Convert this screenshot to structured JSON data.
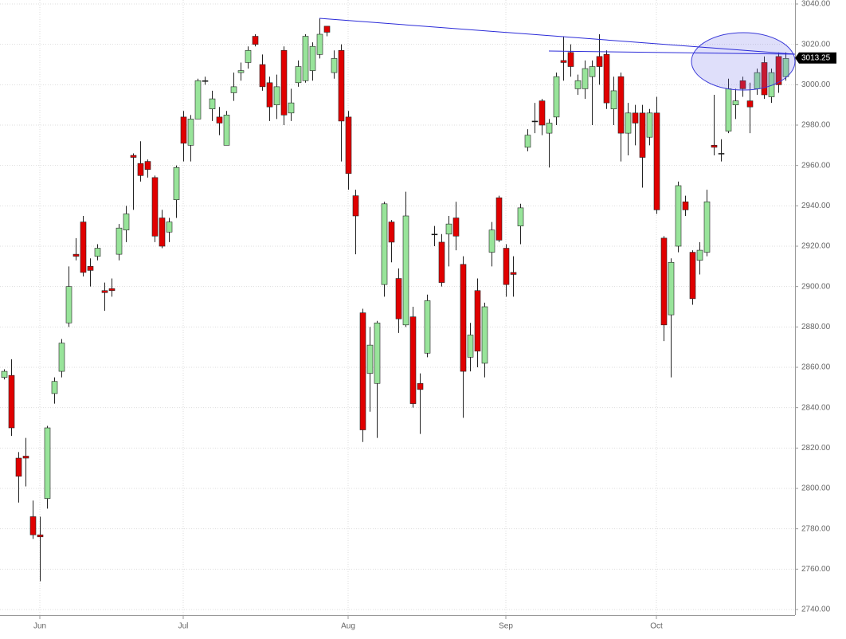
{
  "chart_data": {
    "type": "candlestick",
    "open": [
      2855,
      2856,
      2815,
      2816,
      2786,
      2777,
      2795,
      2847,
      2858,
      2882,
      2916,
      2932,
      2910,
      2915,
      2898,
      2899,
      2916,
      2928,
      2965,
      2961,
      2962,
      2954,
      2934,
      2927,
      2943,
      2984,
      2970,
      2983,
      3002,
      2988,
      2984,
      2970,
      2996,
      3006,
      3011,
      3024,
      3010,
      3001,
      2990,
      3017,
      2986,
      3001,
      3002,
      3007,
      3015,
      3029,
      3006,
      3017,
      2984,
      2945,
      2887,
      2857,
      2852,
      2901,
      2932,
      2904,
      2881,
      2885,
      2852,
      2867,
      2926,
      2922,
      2926,
      2934,
      2911,
      2865,
      2898,
      2862,
      2917,
      2944,
      2919,
      2907,
      2930,
      2969,
      2982,
      2992,
      2976,
      2984,
      3012,
      3016,
      2998,
      2998,
      3004,
      3014,
      3015,
      2988,
      3004,
      2976,
      2986,
      2986,
      2974,
      2986,
      2924,
      2886,
      2920,
      2942,
      2917,
      2913,
      2917,
      2970,
      2966,
      2977,
      2990,
      3002,
      2992,
      2998,
      3011,
      2994,
      3014,
      3004
    ],
    "high": [
      2859,
      2864,
      2818,
      2825,
      2794,
      2786,
      2831,
      2855,
      2874,
      2910,
      2924,
      2935,
      2914,
      2921,
      2902,
      2904,
      2931,
      2940,
      2966,
      2972,
      2963,
      2955,
      2938,
      2934,
      2960,
      2987,
      2985,
      3003,
      3004,
      2997,
      2989,
      2987,
      3006,
      3011,
      3019,
      3025,
      3015,
      3004,
      3005,
      3019,
      2998,
      3012,
      3025,
      3021,
      3033,
      3029,
      3017,
      3020,
      2987,
      2948,
      2889,
      2880,
      2883,
      2942,
      2933,
      2909,
      2947,
      2890,
      2857,
      2896,
      2930,
      2926,
      2935,
      2942,
      2915,
      2882,
      2904,
      2892,
      2932,
      2945,
      2921,
      2915,
      2941,
      2978,
      2991,
      2993,
      2983,
      3006,
      3024,
      3020,
      3005,
      3012,
      3012,
      3025,
      3017,
      3004,
      3006,
      2991,
      2990,
      2990,
      2988,
      2994,
      2925,
      2914,
      2952,
      2945,
      2918,
      2922,
      2948,
      2995,
      2973,
      3003,
      2998,
      3004,
      3001,
      3008,
      3014,
      3008,
      3016,
      3016
    ],
    "low": [
      2854,
      2826,
      2793,
      2801,
      2775,
      2754,
      2790,
      2842,
      2855,
      2880,
      2913,
      2905,
      2900,
      2913,
      2888,
      2895,
      2913,
      2922,
      2938,
      2952,
      2954,
      2922,
      2919,
      2922,
      2934,
      2962,
      2962,
      2983,
      3000,
      2982,
      2975,
      2970,
      2992,
      3002,
      3008,
      3019,
      2997,
      2982,
      2983,
      2980,
      2982,
      2999,
      3001,
      3002,
      3013,
      3024,
      3003,
      2962,
      2948,
      2916,
      2823,
      2838,
      2825,
      2895,
      2912,
      2877,
      2880,
      2840,
      2827,
      2865,
      2920,
      2900,
      2910,
      2918,
      2835,
      2858,
      2860,
      2855,
      2910,
      2922,
      2895,
      2895,
      2921,
      2967,
      2976,
      2975,
      2959,
      2980,
      3002,
      3004,
      2995,
      2993,
      2980,
      3000,
      2988,
      2980,
      2962,
      2965,
      2970,
      2949,
      2970,
      2936,
      2873,
      2855,
      2917,
      2935,
      2891,
      2906,
      2915,
      2965,
      2962,
      2976,
      2983,
      2994,
      2976,
      2995,
      2993,
      2991,
      2996,
      3002
    ],
    "close": [
      2858,
      2830,
      2806,
      2815,
      2777,
      2776,
      2830,
      2853,
      2872,
      2900,
      2915,
      2907,
      2908,
      2919,
      2897,
      2898,
      2929,
      2936,
      2964,
      2955,
      2958,
      2925,
      2920,
      2932,
      2959,
      2971,
      2983,
      3002,
      3002,
      2993,
      2981,
      2985,
      2999,
      3007,
      3017,
      3020,
      2999,
      2989,
      2999,
      2985,
      2991,
      3009,
      3024,
      3019,
      3025,
      3026,
      3013,
      2982,
      2956,
      2935,
      2829,
      2871,
      2882,
      2941,
      2922,
      2884,
      2935,
      2842,
      2849,
      2893,
      2926,
      2902,
      2931,
      2925,
      2858,
      2876,
      2868,
      2890,
      2928,
      2923,
      2901,
      2906,
      2939,
      2975,
      2982,
      2980,
      2981,
      3004,
      3011,
      3009,
      3002,
      3008,
      3009,
      3009,
      2991,
      2997,
      2976,
      2986,
      2981,
      2964,
      2986,
      2938,
      2881,
      2912,
      2950,
      2938,
      2894,
      2918,
      2942,
      2969,
      2966,
      2998,
      2992,
      2998,
      2989,
      3006,
      2995,
      3006,
      3000,
      3013
    ],
    "up_color": "#98e49a",
    "down_color": "#e00000",
    "doji_color": "#000000",
    "ylim": [
      2740,
      3040
    ],
    "yticks": [
      {
        "value": 2740,
        "label": "2740.00"
      },
      {
        "value": 2760,
        "label": "2760.00"
      },
      {
        "value": 2780,
        "label": "2780.00"
      },
      {
        "value": 2800,
        "label": "2800.00"
      },
      {
        "value": 2820,
        "label": "2820.00"
      },
      {
        "value": 2840,
        "label": "2840.00"
      },
      {
        "value": 2860,
        "label": "2860.00"
      },
      {
        "value": 2880,
        "label": "2880.00"
      },
      {
        "value": 2900,
        "label": "2900.00"
      },
      {
        "value": 2920,
        "label": "2920.00"
      },
      {
        "value": 2940,
        "label": "2940.00"
      },
      {
        "value": 2960,
        "label": "2960.00"
      },
      {
        "value": 2980,
        "label": "2980.00"
      },
      {
        "value": 3000,
        "label": "3000.00"
      },
      {
        "value": 3020,
        "label": "3020.00"
      },
      {
        "value": 3040,
        "label": "3040.00"
      }
    ],
    "xticks": [
      {
        "value": 5,
        "label": "Jun"
      },
      {
        "value": 25,
        "label": "Jul"
      },
      {
        "value": 48,
        "label": "Aug"
      },
      {
        "value": 70,
        "label": "Sep"
      },
      {
        "value": 91,
        "label": "Oct"
      }
    ],
    "last_price": 3013.25,
    "grid": true
  }
}
